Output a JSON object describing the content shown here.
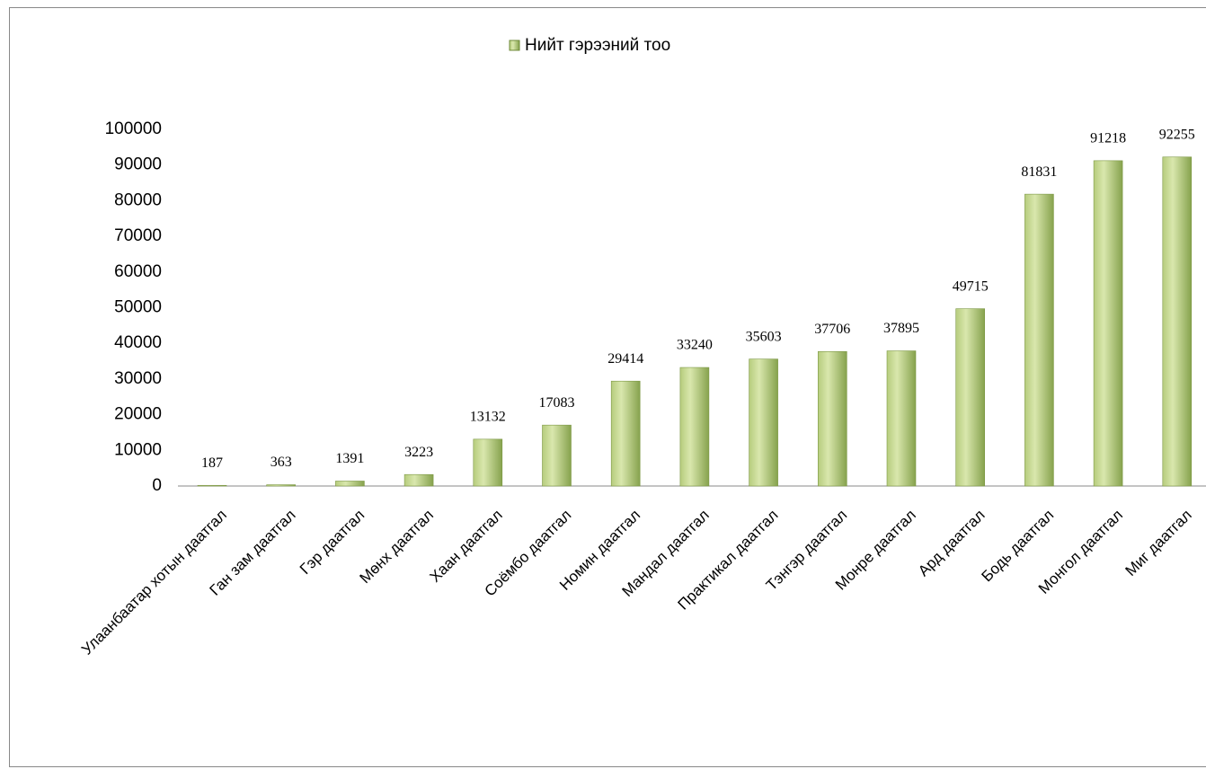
{
  "chart_data": {
    "type": "bar",
    "legend": "Нийт гэрээний тоо",
    "categories": [
      "Улаанбаатар хотын даатгал",
      "Ган зам даатгал",
      "Гэр даатгал",
      "Мөнх даатгал",
      "Хаан даатгал",
      "Соёмбо даатгал",
      "Номин даатгал",
      "Мандал даатгал",
      "Практикал даатгал",
      "Тэнгэр даатгал",
      "Монре даатгал",
      "Ард даатгал",
      "Бодь даатгал",
      "Монгол даатгал",
      "Миг даатгал"
    ],
    "values": [
      187,
      363,
      1391,
      3223,
      13132,
      17083,
      29414,
      33240,
      35603,
      37706,
      37895,
      49715,
      81831,
      91218,
      92255
    ],
    "color": "#9bbb59",
    "ylim": [
      0,
      100000
    ],
    "yticks": [
      0,
      10000,
      20000,
      30000,
      40000,
      50000,
      60000,
      70000,
      80000,
      90000,
      100000
    ],
    "grid": false
  }
}
